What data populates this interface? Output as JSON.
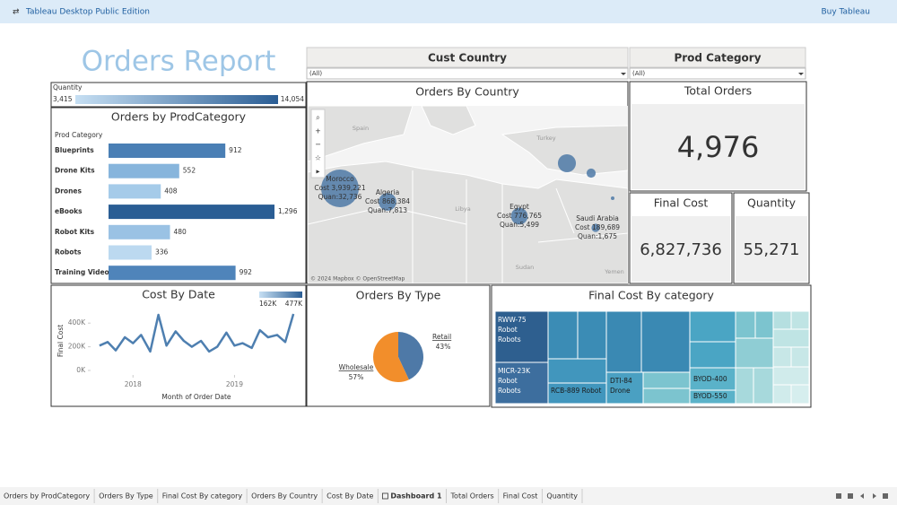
{
  "topbar": {
    "app": "Tableau Desktop Public Edition",
    "link": "Buy Tableau"
  },
  "title": "Orders Report",
  "filters": [
    {
      "label": "Cust Country",
      "value": "(All)"
    },
    {
      "label": "Prod Category",
      "value": "(All)"
    }
  ],
  "quantity_legend": {
    "label": "Quantity",
    "min": 3415,
    "min_label": "3,415",
    "max": 14054,
    "max_label": "14,054"
  },
  "bar_chart": {
    "type": "bar",
    "title": "Orders by ProdCategory",
    "axis_label": "Prod Category",
    "categories": [
      "Blueprints",
      "Drone Kits",
      "Drones",
      "eBooks",
      "Robot Kits",
      "Robots",
      "Training Videos"
    ],
    "values": [
      912,
      552,
      408,
      1296,
      480,
      336,
      992
    ],
    "value_labels": [
      "912",
      "552",
      "408",
      "1,296",
      "480",
      "336",
      "992"
    ],
    "colors": [
      "#4a7fb5",
      "#87b5dc",
      "#a5cbe9",
      "#2a5d94",
      "#9ac2e4",
      "#bcd9f0",
      "#4f84ba"
    ]
  },
  "map": {
    "title": "Orders By Country",
    "attribution": "© 2024 Mapbox © OpenStreetMap",
    "places": [
      "Spain",
      "Turkey",
      "Libya",
      "Sudan",
      "Yemen"
    ],
    "color": "#4e79a7",
    "points": [
      {
        "name": "Morocco",
        "cost": 3939221,
        "cost_label": "Cost 3,939,221",
        "quantity": 32736,
        "quantity_label": "Quan:32,736"
      },
      {
        "name": "Algeria",
        "cost": 868384,
        "cost_label": "Cost 868,384",
        "quantity": 7813,
        "quantity_label": "Quan:7,813"
      },
      {
        "name": "Egypt",
        "cost": 776765,
        "cost_label": "Cost 776,765",
        "quantity": 5499,
        "quantity_label": "Quan:5,499"
      },
      {
        "name": "Saudi Arabia",
        "cost": 189689,
        "cost_label": "Cost 189,689",
        "quantity": 1675,
        "quantity_label": "Quan:1,675"
      }
    ],
    "other_points": [
      {
        "cost": 900000
      },
      {
        "cost": 230000
      },
      {
        "cost": 36000
      }
    ]
  },
  "kpis": [
    {
      "title": "Total Orders",
      "value": 4976,
      "label": "4,976"
    },
    {
      "title": "Final Cost",
      "value": 6827736,
      "label": "6,827,736"
    },
    {
      "title": "Quantity",
      "value": 55271,
      "label": "55,271"
    }
  ],
  "line_chart": {
    "type": "line",
    "title": "Cost By Date",
    "y_label": "Final Cost",
    "x_label": "Month of Order Date",
    "x": [
      2017.67,
      2017.75,
      2017.83,
      2017.92,
      2018.0,
      2018.08,
      2018.17,
      2018.25,
      2018.33,
      2018.42,
      2018.5,
      2018.58,
      2018.67,
      2018.75,
      2018.83,
      2018.92,
      2019.0,
      2019.08,
      2019.17,
      2019.25,
      2019.33,
      2019.42,
      2019.5,
      2019.58
    ],
    "values": [
      210000,
      240000,
      170000,
      280000,
      230000,
      300000,
      160000,
      470000,
      210000,
      330000,
      250000,
      200000,
      250000,
      160000,
      200000,
      320000,
      210000,
      230000,
      190000,
      340000,
      280000,
      300000,
      240000,
      477000
    ],
    "xlim": [
      2017.6,
      2019.65
    ],
    "ylim": [
      0,
      500000
    ],
    "yticks": [
      {
        "value": 0,
        "label": "0K"
      },
      {
        "value": 200000,
        "label": "200K"
      },
      {
        "value": 400000,
        "label": "400K"
      }
    ],
    "xticks": [
      {
        "value": 2018,
        "label": "2018"
      },
      {
        "value": 2019,
        "label": "2019"
      }
    ],
    "color": "#4e7fb0",
    "color_legend": {
      "min": 162000,
      "min_label": "162K",
      "max": 477000,
      "max_label": "477K"
    }
  },
  "pie_chart": {
    "type": "pie",
    "title": "Orders By Type",
    "categories": [
      "Retail",
      "Wholesale"
    ],
    "values": [
      43,
      57
    ],
    "value_labels": [
      "43%",
      "57%"
    ],
    "colors": [
      "#4e79a7",
      "#f28e2b"
    ]
  },
  "treemap": {
    "title": "Final Cost By category",
    "labels": [
      [
        "RWW-75",
        "Robot",
        "Robots"
      ],
      [
        "MICR-23K",
        "Robot",
        "Robots"
      ],
      [
        "RCB-889 Robot"
      ],
      [
        "DTI-84",
        "Drone"
      ],
      [
        "BYOD-400"
      ],
      [
        "BYOD-550"
      ]
    ]
  },
  "tabs": [
    {
      "label": "Orders by ProdCategory",
      "active": false
    },
    {
      "label": "Orders By Type",
      "active": false
    },
    {
      "label": "Final Cost By category",
      "active": false
    },
    {
      "label": "Orders By Country",
      "active": false
    },
    {
      "label": "Cost By Date",
      "active": false
    },
    {
      "label": "Dashboard 1",
      "active": true
    },
    {
      "label": "Total Orders",
      "active": false
    },
    {
      "label": "Final Cost",
      "active": false
    },
    {
      "label": "Quantity",
      "active": false
    }
  ]
}
